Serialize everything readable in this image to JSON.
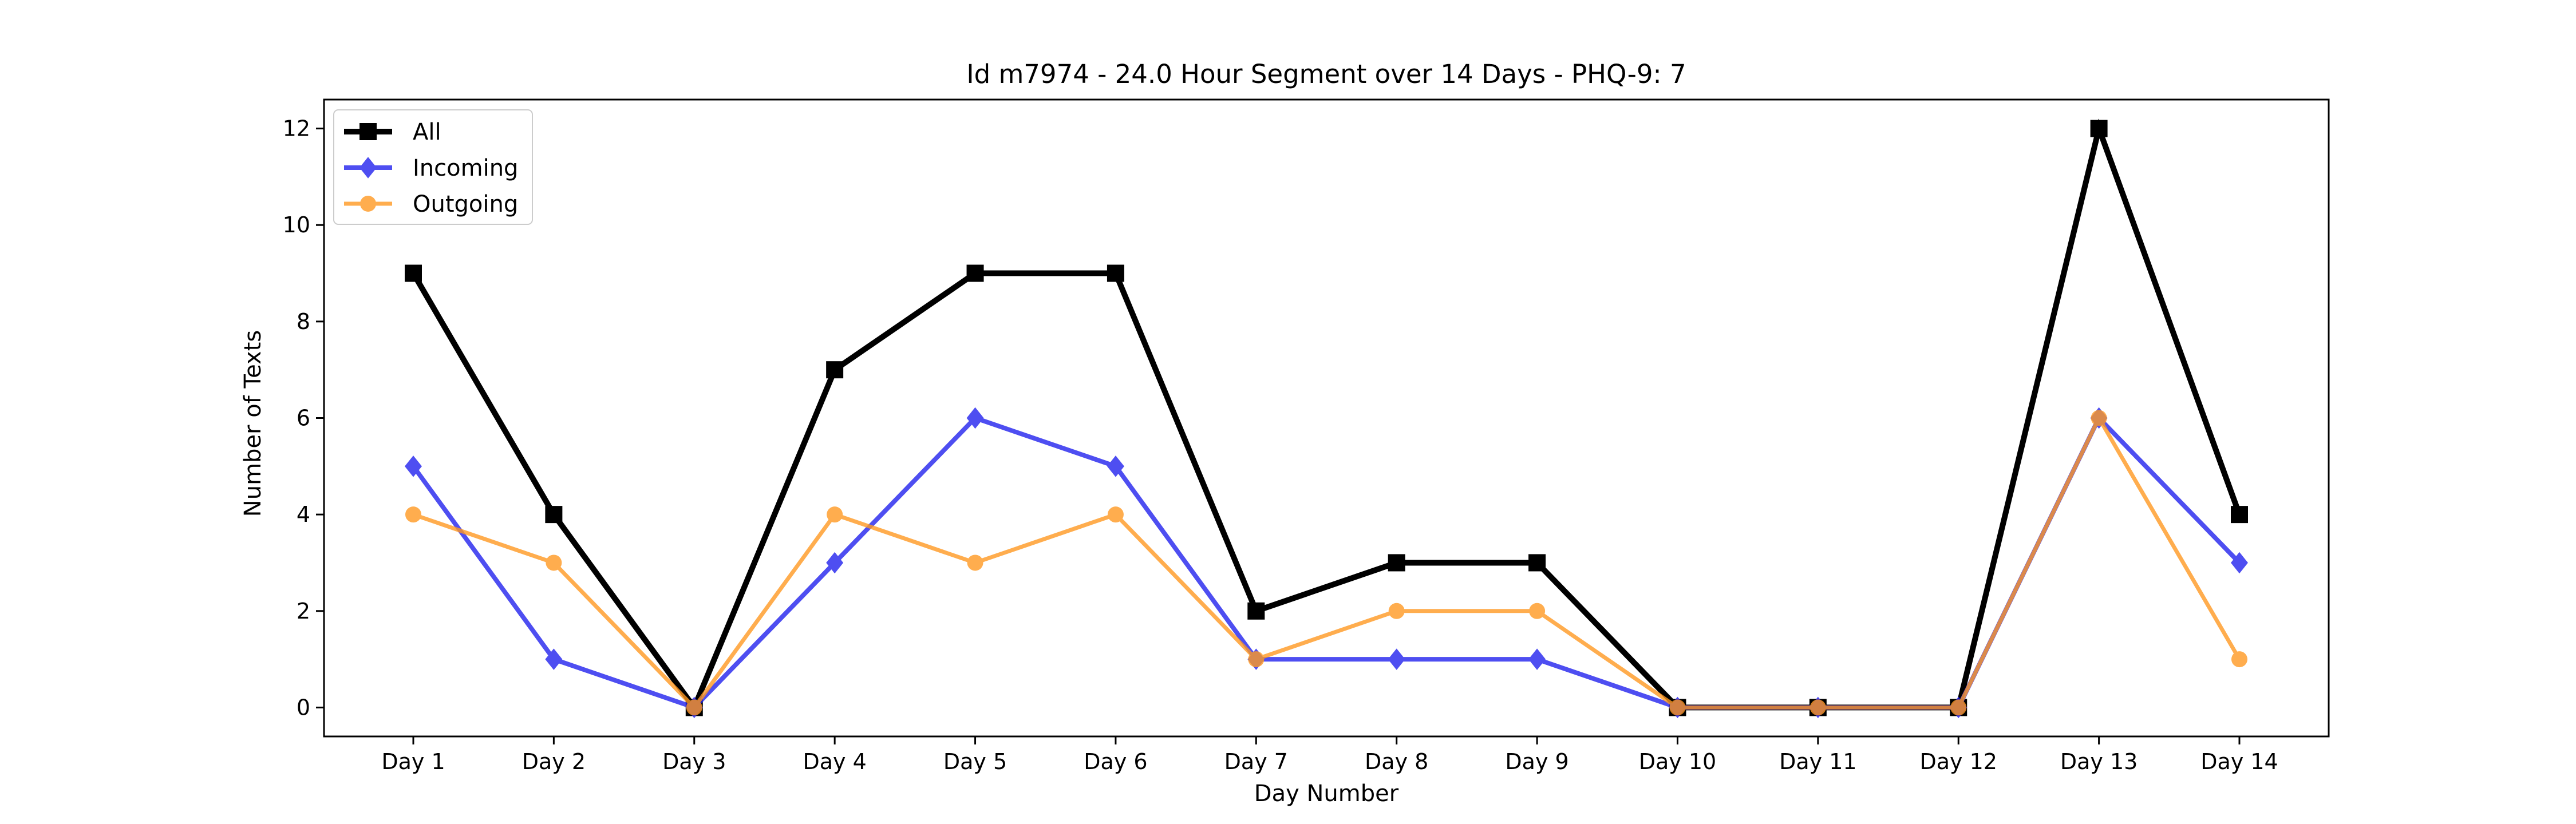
{
  "chart_data": {
    "type": "line",
    "title": "Id m7974 - 24.0 Hour Segment over 14 Days - PHQ-9: 7",
    "xlabel": "Day Number",
    "ylabel": "Number of Texts",
    "categories": [
      "Day 1",
      "Day 2",
      "Day 3",
      "Day 4",
      "Day 5",
      "Day 6",
      "Day 7",
      "Day 8",
      "Day 9",
      "Day 10",
      "Day 11",
      "Day 12",
      "Day 13",
      "Day 14"
    ],
    "ylim": [
      -0.6,
      12.6
    ],
    "yticks": [
      0,
      2,
      4,
      6,
      8,
      10,
      12
    ],
    "grid": false,
    "legend_position": "top-left",
    "series": [
      {
        "name": "All",
        "color": "#000000",
        "marker": "square",
        "values": [
          9,
          4,
          0,
          7,
          9,
          9,
          2,
          3,
          3,
          0,
          0,
          0,
          12,
          4
        ]
      },
      {
        "name": "Incoming",
        "color": "#2222ee",
        "marker": "diamond",
        "values": [
          5,
          1,
          0,
          3,
          6,
          5,
          1,
          1,
          1,
          0,
          0,
          0,
          6,
          3
        ]
      },
      {
        "name": "Outgoing",
        "color": "#ff9922",
        "marker": "circle",
        "values": [
          4,
          3,
          0,
          4,
          3,
          4,
          1,
          2,
          2,
          0,
          0,
          0,
          6,
          1
        ]
      }
    ]
  }
}
